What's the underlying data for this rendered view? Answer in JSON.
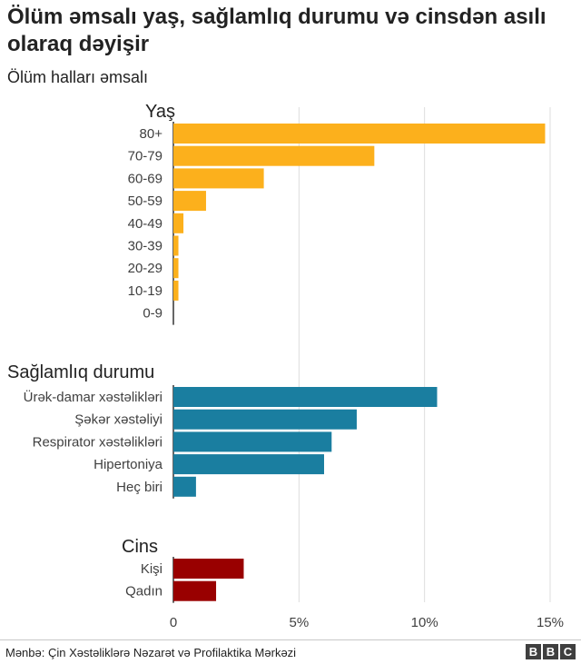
{
  "title": "Ölüm əmsalı yaş, sağlamlıq durumu və cinsdən asılı olaraq dəyişir",
  "subtitle": "Ölüm halları əmsalı",
  "source": "Mənbə: Çin Xəstəliklərə Nəzarət və Profilaktika Mərkəzi",
  "logo": [
    "B",
    "B",
    "C"
  ],
  "chart_data": {
    "type": "bar",
    "orientation": "horizontal",
    "title": "Ölüm əmsalı yaş, sağlamlıq durumu və cinsdən asılı olaraq dəyişir",
    "subtitle": "Ölüm halları əmsalı",
    "xlim": [
      0,
      15
    ],
    "x_ticks": [
      0,
      5,
      10,
      15
    ],
    "x_tick_labels": [
      "0",
      "5%",
      "10%",
      "15%"
    ],
    "grid": "vertical",
    "legend": "none",
    "groups": [
      {
        "name": "Yaş",
        "color": "#fcb01c",
        "categories": [
          "80+",
          "70-79",
          "60-69",
          "50-59",
          "40-49",
          "30-39",
          "20-29",
          "10-19",
          "0-9"
        ],
        "values": [
          14.8,
          8.0,
          3.6,
          1.3,
          0.4,
          0.2,
          0.2,
          0.2,
          0.0
        ]
      },
      {
        "name": "Sağlamlıq durumu",
        "color": "#1a7ea0",
        "categories": [
          "Ürək-damar xəstəlikləri",
          "Şəkər xəstəliyi",
          "Respirator xəstəlikləri",
          "Hipertoniya",
          "Heç biri"
        ],
        "values": [
          10.5,
          7.3,
          6.3,
          6.0,
          0.9
        ]
      },
      {
        "name": "Cins",
        "color": "#990000",
        "categories": [
          "Kişi",
          "Qadın"
        ],
        "values": [
          2.8,
          1.7
        ]
      }
    ]
  }
}
